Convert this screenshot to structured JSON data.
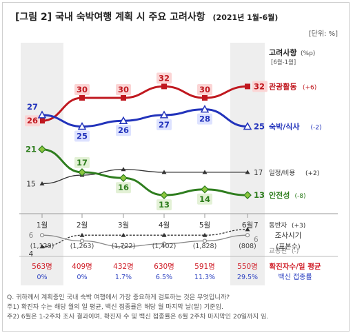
{
  "title": {
    "label": "[그림 2]",
    "main": "국내 숙박여행 계획 시 주요 고려사항",
    "period": "(2021년 1월-6월)"
  },
  "unit": "[단위: %]",
  "legend_header": {
    "title": "고려사항",
    "unit": "(%p)",
    "sub": "[6월-1월]"
  },
  "survey_label": {
    "line1": "조사시기",
    "line2": "(표본수)"
  },
  "bottom_legend": {
    "cases": "확진자수/일 평균",
    "vaccine": "백신 접종률"
  },
  "footnotes": [
    "Q. 귀하께서 계획중인 국내 숙박 여행에서 가장 중요하게 검토하는 것은 무엇입니까?",
    "주1) 확진자 수는 해당 월의 일 평균, 백신 접종률은 해당 월 마지막 날(말) 기준임.",
    "주2) 6월은 1-2주차 조사 결과이며, 확진자 수 및 백신 접종률은 6월 2주차 마지막인 20일까지 임."
  ],
  "colors": {
    "red": "#c0181f",
    "blue": "#2233bb",
    "green": "#2e7d1e",
    "black": "#333333",
    "gray": "#888888",
    "case_red": "#d0202a",
    "vax_blue": "#2a3fc0"
  },
  "chart_data": {
    "type": "line",
    "categories": [
      "1월",
      "2월",
      "3월",
      "4월",
      "5월",
      "6월"
    ],
    "samples": [
      "(1,128)",
      "(1,263)",
      "(1,722)",
      "(1,402)",
      "(1,828)",
      "(808)"
    ],
    "cases": [
      "563명",
      "409명",
      "432명",
      "630명",
      "591명",
      "550명"
    ],
    "vaccine": [
      "0%",
      "0%",
      "1.7%",
      "6.5%",
      "11.3%",
      "29.5%"
    ],
    "ylim": [
      0,
      36
    ],
    "series": [
      {
        "name": "관광활동",
        "change": "(+6)",
        "color": "#c0181f",
        "marker": "square",
        "values": [
          26,
          30,
          30,
          32,
          30,
          32
        ],
        "labels": [
          "26",
          "30",
          "30",
          "32",
          "30",
          "32"
        ]
      },
      {
        "name": "숙박/식사",
        "change": "(-2)",
        "color": "#2233bb",
        "marker": "triangle",
        "values": [
          27,
          25,
          26,
          27,
          28,
          25
        ],
        "labels": [
          "27",
          "25",
          "26",
          "27",
          "28",
          "25"
        ]
      },
      {
        "name": "일정/비용",
        "change": "(+2)",
        "color": "#333333",
        "marker": "small-triangle",
        "values": [
          15,
          16.5,
          17.5,
          17,
          17,
          17
        ],
        "labels": [
          "15",
          "",
          "",
          "",
          "",
          "17"
        ]
      },
      {
        "name": "안전성",
        "change": "(-8)",
        "color": "#2e7d1e",
        "marker": "diamond",
        "values": [
          21,
          17,
          16,
          13,
          14,
          13
        ],
        "labels": [
          "21",
          "17",
          "16",
          "13",
          "14",
          "13"
        ]
      },
      {
        "name": "동반자",
        "change": "(+3)",
        "color": "#333333",
        "marker": "small-triangle",
        "dashed": true,
        "values": [
          4,
          6,
          6,
          6,
          6,
          7
        ],
        "labels": [
          "4",
          "",
          "",
          "",
          "",
          "7"
        ]
      },
      {
        "name": "교통편",
        "change": "(-)",
        "color": "#888888",
        "marker": "circle",
        "values": [
          6,
          5,
          4,
          4.5,
          5,
          6
        ],
        "labels": [
          "6",
          "",
          "",
          "",
          "",
          "6"
        ]
      }
    ]
  }
}
